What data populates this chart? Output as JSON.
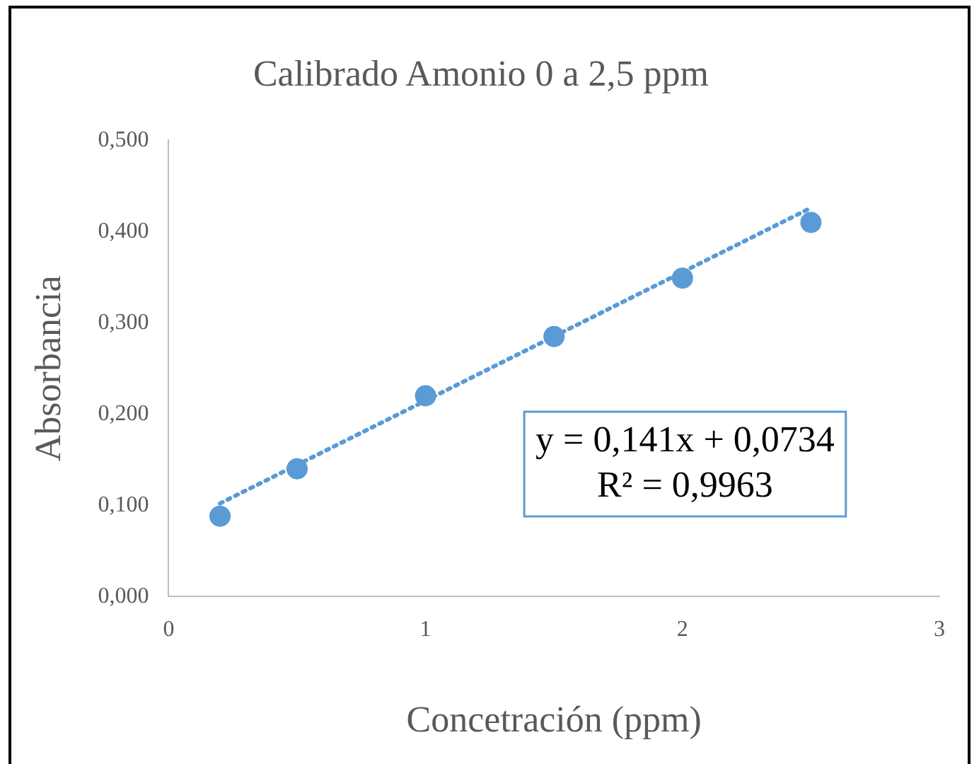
{
  "chart_data": {
    "type": "scatter",
    "title": "Calibrado Amonio 0 a 2,5 ppm",
    "xlabel": "Concetración (ppm)",
    "ylabel": "Absorbancia",
    "series": [
      {
        "color": "#5b9bd5",
        "marker": "circle",
        "x": [
          0.2,
          0.5,
          1,
          1.5,
          2,
          2.5
        ],
        "values": [
          0.088,
          0.14,
          0.22,
          0.285,
          0.349,
          0.41
        ]
      },
      {
        "type": "line",
        "color": "#5b9bd5",
        "marker": "none",
        "line_style": "dotted",
        "x": [
          0.2,
          2.5
        ],
        "values": [
          0.102,
          0.426
        ]
      }
    ],
    "xlim": [
      0,
      3
    ],
    "xticks": [
      0,
      1,
      2,
      3
    ],
    "ylim": [
      0,
      0.5
    ],
    "yticks": [
      {
        "value": 0,
        "label": "0,000"
      },
      {
        "value": 0.1,
        "label": "0,100"
      },
      {
        "value": 0.2,
        "label": "0,200"
      },
      {
        "value": 0.3,
        "label": "0,300"
      },
      {
        "value": 0.4,
        "label": "0,400"
      },
      {
        "value": 0.5,
        "label": "0,500"
      }
    ],
    "grid": false,
    "legend": false,
    "annotations": [
      "y = 0,141x + 0,0734",
      "R² = 0,9963"
    ]
  }
}
